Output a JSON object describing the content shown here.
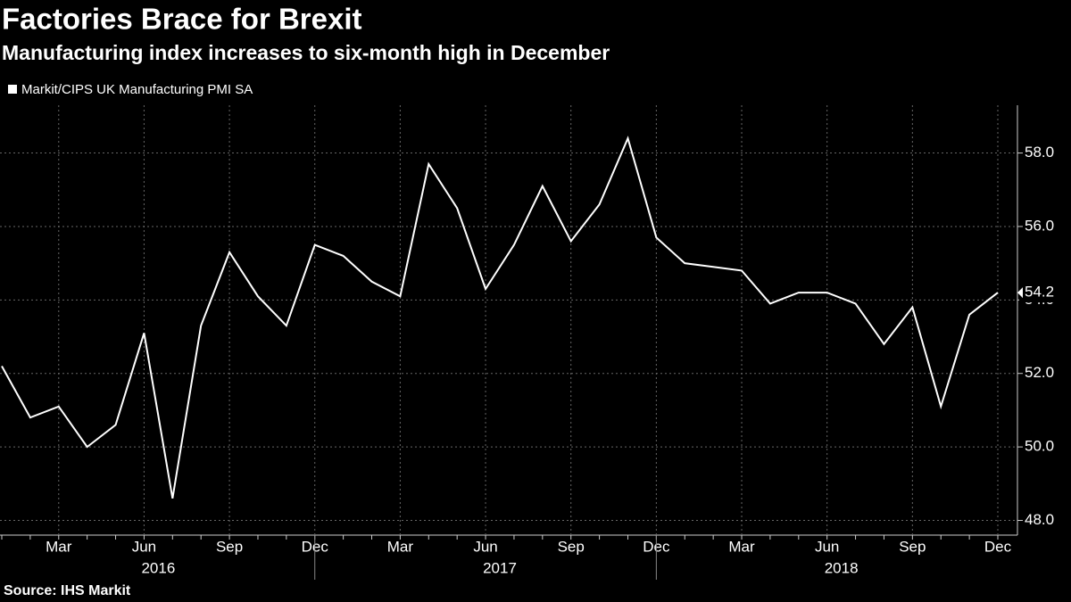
{
  "chart_data": {
    "type": "line",
    "title": "Factories Brace for Brexit",
    "subtitle": "Manufacturing index increases to six-month high in December",
    "source": "Source: IHS Markit",
    "categories": [
      null,
      null,
      "Mar",
      null,
      null,
      "Jun",
      null,
      null,
      "Sep",
      null,
      null,
      "Dec",
      null,
      null,
      "Mar",
      null,
      null,
      "Jun",
      null,
      null,
      "Sep",
      null,
      null,
      "Dec",
      null,
      null,
      "Mar",
      null,
      null,
      "Jun",
      null,
      null,
      "Sep",
      null,
      null,
      "Dec"
    ],
    "years": [
      "2016",
      "2017",
      "2018"
    ],
    "series": [
      {
        "name": "Markit/CIPS UK Manufacturing PMI SA",
        "color": "#ffffff",
        "values": [
          52.2,
          50.8,
          51.1,
          50.0,
          50.6,
          53.1,
          48.6,
          53.3,
          55.3,
          54.1,
          53.3,
          55.5,
          55.2,
          54.5,
          54.1,
          57.7,
          56.5,
          54.3,
          55.5,
          57.1,
          55.6,
          56.6,
          58.4,
          55.7,
          55.0,
          54.9,
          54.8,
          53.9,
          54.2,
          54.2,
          53.9,
          52.8,
          53.8,
          51.1,
          53.6,
          54.2
        ]
      }
    ],
    "ylim": [
      47.6,
      59.3
    ],
    "yticks": [
      {
        "value": 48,
        "label": "48.0"
      },
      {
        "value": 50,
        "label": "50.0"
      },
      {
        "value": 52,
        "label": "52.0"
      },
      {
        "value": 54,
        "label": "54.0"
      },
      {
        "value": 56,
        "label": "56.0"
      },
      {
        "value": 58,
        "label": "58.0"
      }
    ],
    "grid": true
  }
}
